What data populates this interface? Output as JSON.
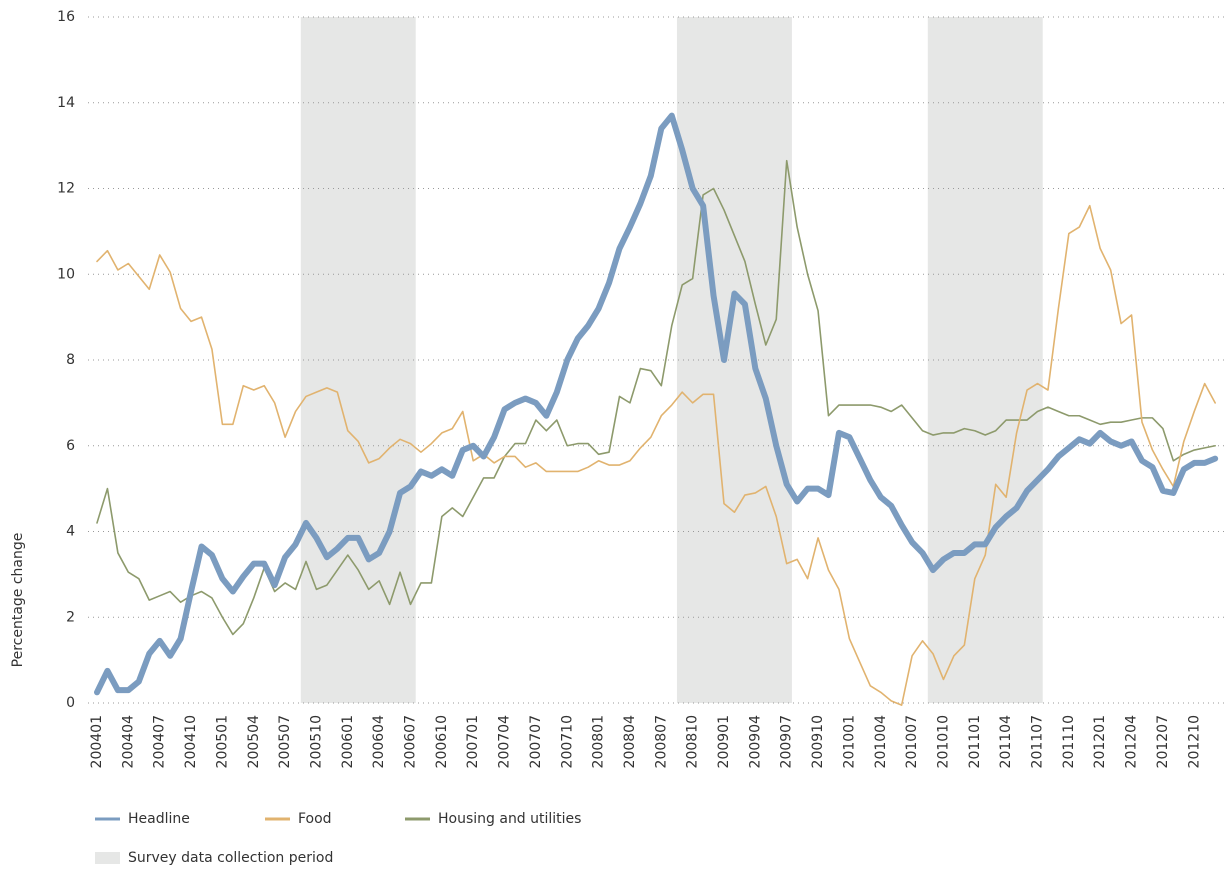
{
  "chart_data": {
    "type": "line",
    "y_label": "Percentage change",
    "categories": [
      "200401",
      null,
      null,
      "200404",
      null,
      null,
      "200407",
      null,
      null,
      "200410",
      null,
      null,
      "200501",
      null,
      null,
      "200504",
      null,
      null,
      "200507",
      null,
      null,
      "200510",
      null,
      null,
      "200601",
      null,
      null,
      "200604",
      null,
      null,
      "200607",
      null,
      null,
      "200610",
      null,
      null,
      "200701",
      null,
      null,
      "200704",
      null,
      null,
      "200707",
      null,
      null,
      "200710",
      null,
      null,
      "200801",
      null,
      null,
      "200804",
      null,
      null,
      "200807",
      null,
      null,
      "200810",
      null,
      null,
      "200901",
      null,
      null,
      "200904",
      null,
      null,
      "200907",
      null,
      null,
      "200910",
      null,
      null,
      "201001",
      null,
      null,
      "201004",
      null,
      null,
      "201007",
      null,
      null,
      "201010",
      null,
      null,
      "201101",
      null,
      null,
      "201104",
      null,
      null,
      "201107",
      null,
      null,
      "201110",
      null,
      null,
      "201201",
      null,
      null,
      "201204",
      null,
      null,
      "201207",
      null,
      null,
      "201210",
      null,
      null
    ],
    "series": [
      {
        "name": "Headline",
        "color": "#7b9cc0",
        "width": 6,
        "values": [
          0.25,
          0.75,
          0.3,
          0.3,
          0.5,
          1.15,
          1.45,
          1.1,
          1.5,
          2.6,
          3.65,
          3.45,
          2.9,
          2.6,
          2.95,
          3.25,
          3.25,
          2.75,
          3.4,
          3.7,
          4.2,
          3.85,
          3.4,
          3.6,
          3.85,
          3.85,
          3.35,
          3.5,
          4.0,
          4.9,
          5.05,
          5.4,
          5.3,
          5.45,
          5.3,
          5.9,
          6.0,
          5.75,
          6.2,
          6.85,
          7.0,
          7.1,
          7.0,
          6.7,
          7.25,
          8.0,
          8.5,
          8.8,
          9.2,
          9.8,
          10.6,
          11.1,
          11.65,
          12.3,
          13.4,
          13.7,
          12.9,
          12.0,
          11.6,
          9.5,
          8.0,
          9.55,
          9.3,
          7.8,
          7.1,
          6.0,
          5.1,
          4.7,
          5.0,
          5.0,
          4.85,
          6.3,
          6.2,
          5.7,
          5.2,
          4.8,
          4.6,
          4.15,
          3.75,
          3.5,
          3.1,
          3.35,
          3.5,
          3.5,
          3.7,
          3.7,
          4.1,
          4.35,
          4.55,
          4.95,
          5.2,
          5.45,
          5.75,
          5.95,
          6.15,
          6.05,
          6.3,
          6.1,
          6.0,
          6.1,
          5.65,
          5.5,
          4.95,
          4.9,
          5.45,
          5.6,
          5.6,
          5.7
        ]
      },
      {
        "name": "Food",
        "color": "#e1b36f",
        "width": 1.6,
        "values": [
          10.3,
          10.55,
          10.1,
          10.25,
          9.95,
          9.65,
          10.45,
          10.05,
          9.2,
          8.9,
          9.0,
          8.25,
          6.5,
          6.5,
          7.4,
          7.3,
          7.4,
          7.0,
          6.2,
          6.8,
          7.15,
          7.25,
          7.35,
          7.25,
          6.35,
          6.1,
          5.6,
          5.7,
          5.95,
          6.15,
          6.05,
          5.85,
          6.05,
          6.3,
          6.4,
          6.8,
          5.65,
          5.8,
          5.6,
          5.75,
          5.75,
          5.5,
          5.6,
          5.4,
          5.4,
          5.4,
          5.4,
          5.5,
          5.65,
          5.55,
          5.55,
          5.65,
          5.95,
          6.2,
          6.7,
          6.95,
          7.25,
          7.0,
          7.2,
          7.2,
          4.65,
          4.45,
          4.85,
          4.9,
          5.05,
          4.35,
          3.25,
          3.35,
          2.9,
          3.85,
          3.1,
          2.65,
          1.5,
          0.95,
          0.4,
          0.25,
          0.05,
          -0.05,
          1.1,
          1.45,
          1.15,
          0.55,
          1.1,
          1.35,
          2.9,
          3.45,
          5.1,
          4.8,
          6.3,
          7.3,
          7.45,
          7.3,
          9.2,
          10.95,
          11.1,
          11.6,
          10.6,
          10.1,
          8.85,
          9.05,
          6.55,
          5.9,
          5.45,
          5.05,
          6.1,
          6.8,
          7.45,
          7.0
        ]
      },
      {
        "name": "Housing and utilities",
        "color": "#8d9a6c",
        "width": 1.6,
        "values": [
          4.2,
          5.0,
          3.5,
          3.05,
          2.9,
          2.4,
          2.5,
          2.6,
          2.35,
          2.5,
          2.6,
          2.45,
          2.0,
          1.6,
          1.85,
          2.45,
          3.15,
          2.6,
          2.8,
          2.65,
          3.3,
          2.65,
          2.75,
          3.1,
          3.45,
          3.1,
          2.65,
          2.85,
          2.3,
          3.05,
          2.3,
          2.8,
          2.8,
          4.35,
          4.55,
          4.35,
          4.8,
          5.25,
          5.25,
          5.75,
          6.05,
          6.05,
          6.6,
          6.35,
          6.6,
          6.0,
          6.05,
          6.05,
          5.8,
          5.85,
          7.15,
          7.0,
          7.8,
          7.75,
          7.4,
          8.8,
          9.75,
          9.9,
          11.85,
          12.0,
          11.5,
          10.9,
          10.3,
          9.3,
          8.35,
          8.95,
          12.65,
          11.1,
          10.0,
          9.15,
          6.7,
          6.95,
          6.95,
          6.95,
          6.95,
          6.9,
          6.8,
          6.95,
          6.65,
          6.35,
          6.25,
          6.3,
          6.3,
          6.4,
          6.35,
          6.25,
          6.35,
          6.6,
          6.6,
          6.6,
          6.8,
          6.9,
          6.8,
          6.7,
          6.7,
          6.6,
          6.5,
          6.55,
          6.55,
          6.6,
          6.65,
          6.65,
          6.4,
          5.65,
          5.8,
          5.9,
          5.95,
          6.0
        ]
      }
    ],
    "shaded": {
      "name": "Survey data collection period",
      "color": "#e6e7e6",
      "ranges": [
        [
          20,
          30
        ],
        [
          56,
          66
        ],
        [
          80,
          90
        ]
      ]
    },
    "ylim": [
      0,
      16
    ],
    "yticks": [
      0,
      2,
      4,
      6,
      8,
      10,
      12,
      14,
      16
    ],
    "grid": true
  }
}
